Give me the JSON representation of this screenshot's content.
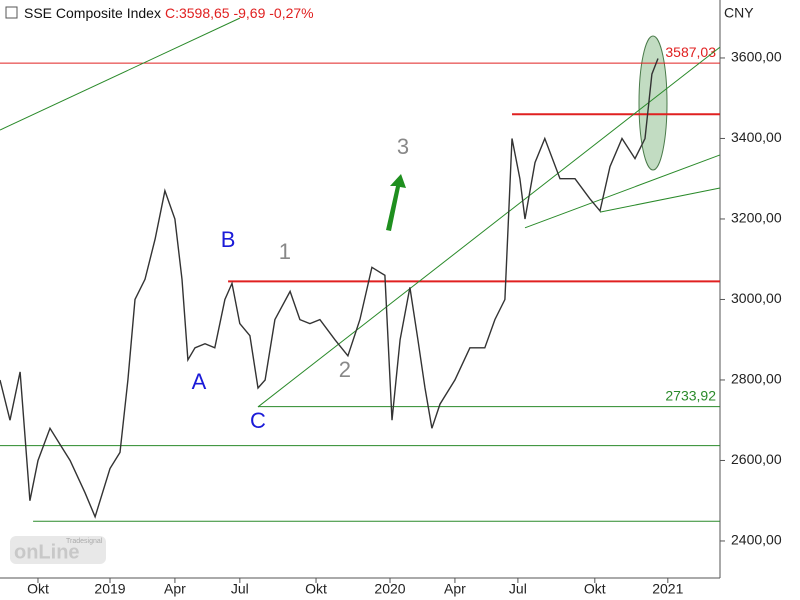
{
  "chart_data": {
    "type": "line",
    "title": "SSE Composite Index",
    "subtitle": "C:3598,65 -9,69 -0,27%",
    "currency": "CNY",
    "logo": {
      "top": "Tradesignal",
      "main": "onLine"
    },
    "series": [
      {
        "name": "SSE Composite Index",
        "color": "#333333",
        "x": [
          -1.55,
          -1.14,
          -0.73,
          -0.33,
          0,
          0.49,
          0.9,
          1.31,
          1.92,
          2.33,
          2.94,
          3.35,
          3.67,
          3.96,
          4.37,
          4.78,
          5.18,
          5.59,
          5.88,
          6.12,
          6.41,
          6.82,
          7.22,
          7.63,
          7.92,
          8.24,
          8.65,
          8.98,
          9.27,
          9.67,
          10.29,
          10.69,
          11.1,
          11.51,
          12.12,
          12.65,
          13.14,
          13.63,
          14.16,
          14.45,
          14.78,
          15.18,
          15.51,
          15.8,
          16.08,
          16.41,
          17.02,
          17.63,
          18.24,
          18.65,
          19.06,
          19.35,
          19.67,
          19.88,
          20.29,
          20.69,
          21.31,
          21.92,
          22.53,
          22.94,
          23.35,
          23.84,
          24.37,
          24.78,
          25.06,
          25.31
        ],
        "values": [
          2800,
          2700,
          2820,
          2500,
          2600,
          2680,
          2640,
          2600,
          2520,
          2460,
          2580,
          2620,
          2800,
          3000,
          3050,
          3150,
          3270,
          3200,
          3050,
          2850,
          2880,
          2890,
          2880,
          3000,
          3040,
          2940,
          2910,
          2780,
          2800,
          2950,
          3020,
          2950,
          2940,
          2950,
          2900,
          2860,
          2950,
          3080,
          3060,
          2700,
          2900,
          3030,
          2900,
          2780,
          2680,
          2740,
          2800,
          2880,
          2880,
          2950,
          3000,
          3400,
          3300,
          3200,
          3340,
          3400,
          3300,
          3300,
          3250,
          3220,
          3330,
          3400,
          3350,
          3400,
          3560,
          3598.65
        ]
      }
    ],
    "xlim": [
      -1.55,
      27.84
    ],
    "ylim": [
      2308,
      3744
    ],
    "xticks": [
      {
        "value": 0,
        "label": "Okt"
      },
      {
        "value": 2.94,
        "label": "2019"
      },
      {
        "value": 5.59,
        "label": "Apr"
      },
      {
        "value": 8.24,
        "label": "Jul"
      },
      {
        "value": 11.35,
        "label": "Okt"
      },
      {
        "value": 14.37,
        "label": "2020"
      },
      {
        "value": 17.02,
        "label": "Apr"
      },
      {
        "value": 19.59,
        "label": "Jul"
      },
      {
        "value": 22.73,
        "label": "Okt"
      },
      {
        "value": 25.71,
        "label": "2021"
      }
    ],
    "yticks": [
      {
        "value": 2400,
        "label": "2400,00"
      },
      {
        "value": 2600,
        "label": "2600,00"
      },
      {
        "value": 2800,
        "label": "2800,00"
      },
      {
        "value": 3000,
        "label": "3000,00"
      },
      {
        "value": 3200,
        "label": "3200,00"
      },
      {
        "value": 3400,
        "label": "3400,00"
      },
      {
        "value": 3600,
        "label": "3600,00"
      }
    ],
    "hlines": [
      {
        "value": 3587.03,
        "label": "3587,03",
        "color": "#e02020",
        "from": -1.55,
        "width": 1
      },
      {
        "value": 3460,
        "color": "#e02020",
        "from": 19.35,
        "width": 2
      },
      {
        "value": 3045,
        "color": "#e02020",
        "from": 7.76,
        "width": 2
      },
      {
        "value": 2733.92,
        "label": "2733,92",
        "color": "#2a8a2a",
        "from": 8.98,
        "width": 1
      },
      {
        "value": 2637,
        "color": "#2a8a2a",
        "from": -1.55,
        "width": 1
      },
      {
        "value": 2449,
        "color": "#2a8a2a",
        "from": -0.2,
        "width": 1
      }
    ],
    "trendlines": [
      {
        "x": [
          -1.55,
          8.24
        ],
        "y": [
          3421,
          3699
        ],
        "color": "#2a8a2a"
      },
      {
        "x": [
          8.98,
          27.84
        ],
        "y": [
          2733,
          3627
        ],
        "color": "#2a8a2a"
      },
      {
        "x": [
          19.88,
          27.84
        ],
        "y": [
          3178,
          3359
        ],
        "color": "#2a8a2a"
      },
      {
        "x": [
          22.94,
          27.84
        ],
        "y": [
          3217,
          3277
        ],
        "color": "#2a8a2a"
      }
    ],
    "annotations": [
      {
        "text": "A",
        "x": 6.57,
        "y": 2792.6,
        "color": "#1a1ad8"
      },
      {
        "text": "B",
        "x": 7.76,
        "y": 3145,
        "color": "#1a1ad8"
      },
      {
        "text": "C",
        "x": 8.98,
        "y": 2695.6,
        "color": "#1a1ad8"
      },
      {
        "text": "1",
        "x": 10.08,
        "y": 3115.5,
        "color": "#888888"
      },
      {
        "text": "2",
        "x": 12.53,
        "y": 2822.4,
        "color": "#888888"
      },
      {
        "text": "3",
        "x": 14.9,
        "y": 3376,
        "color": "#888888"
      }
    ]
  }
}
